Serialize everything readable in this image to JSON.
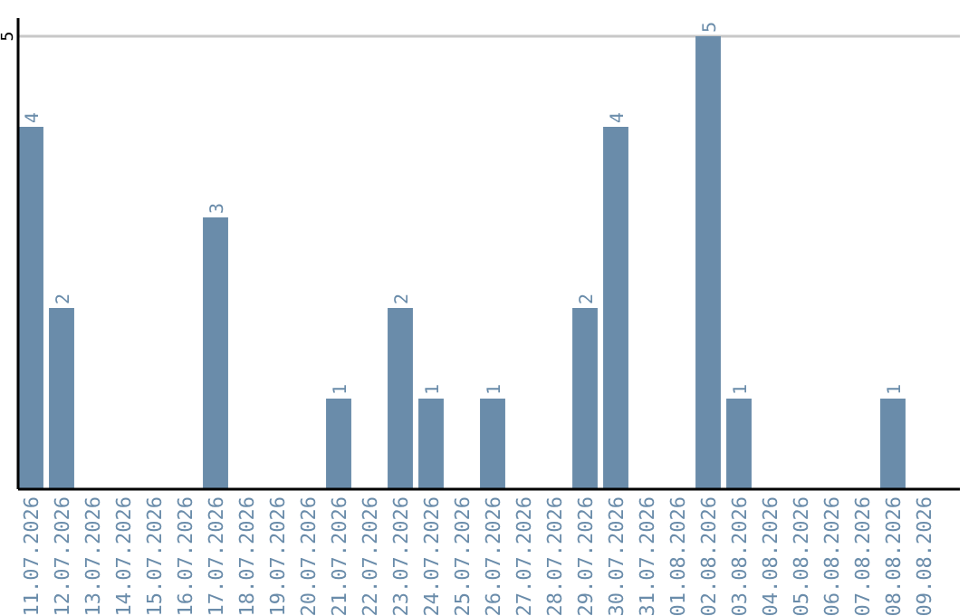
{
  "chart_data": {
    "type": "bar",
    "categories": [
      "11.07.2026",
      "12.07.2026",
      "13.07.2026",
      "14.07.2026",
      "15.07.2026",
      "16.07.2026",
      "17.07.2026",
      "18.07.2026",
      "19.07.2026",
      "20.07.2026",
      "21.07.2026",
      "22.07.2026",
      "23.07.2026",
      "24.07.2026",
      "25.07.2026",
      "26.07.2026",
      "27.07.2026",
      "28.07.2026",
      "29.07.2026",
      "30.07.2026",
      "31.07.2026",
      "01.08.2026",
      "02.08.2026",
      "03.08.2026",
      "04.08.2026",
      "05.08.2026",
      "06.08.2026",
      "07.08.2026",
      "08.08.2026",
      "09.08.2026"
    ],
    "values": [
      4,
      2,
      0,
      0,
      0,
      0,
      3,
      0,
      0,
      0,
      1,
      0,
      2,
      1,
      0,
      1,
      0,
      0,
      2,
      4,
      0,
      0,
      5,
      1,
      0,
      0,
      0,
      0,
      1,
      0
    ],
    "value_labels": [
      "4",
      "2",
      null,
      null,
      null,
      null,
      "3",
      null,
      null,
      null,
      "1",
      null,
      "2",
      "1",
      null,
      "1",
      null,
      null,
      "2",
      "4",
      null,
      null,
      "5",
      "1",
      null,
      null,
      null,
      null,
      "1",
      null
    ],
    "color": "#6a8caa",
    "ylim": [
      0,
      5.2
    ],
    "yticks": [
      5
    ],
    "grid": "y"
  }
}
